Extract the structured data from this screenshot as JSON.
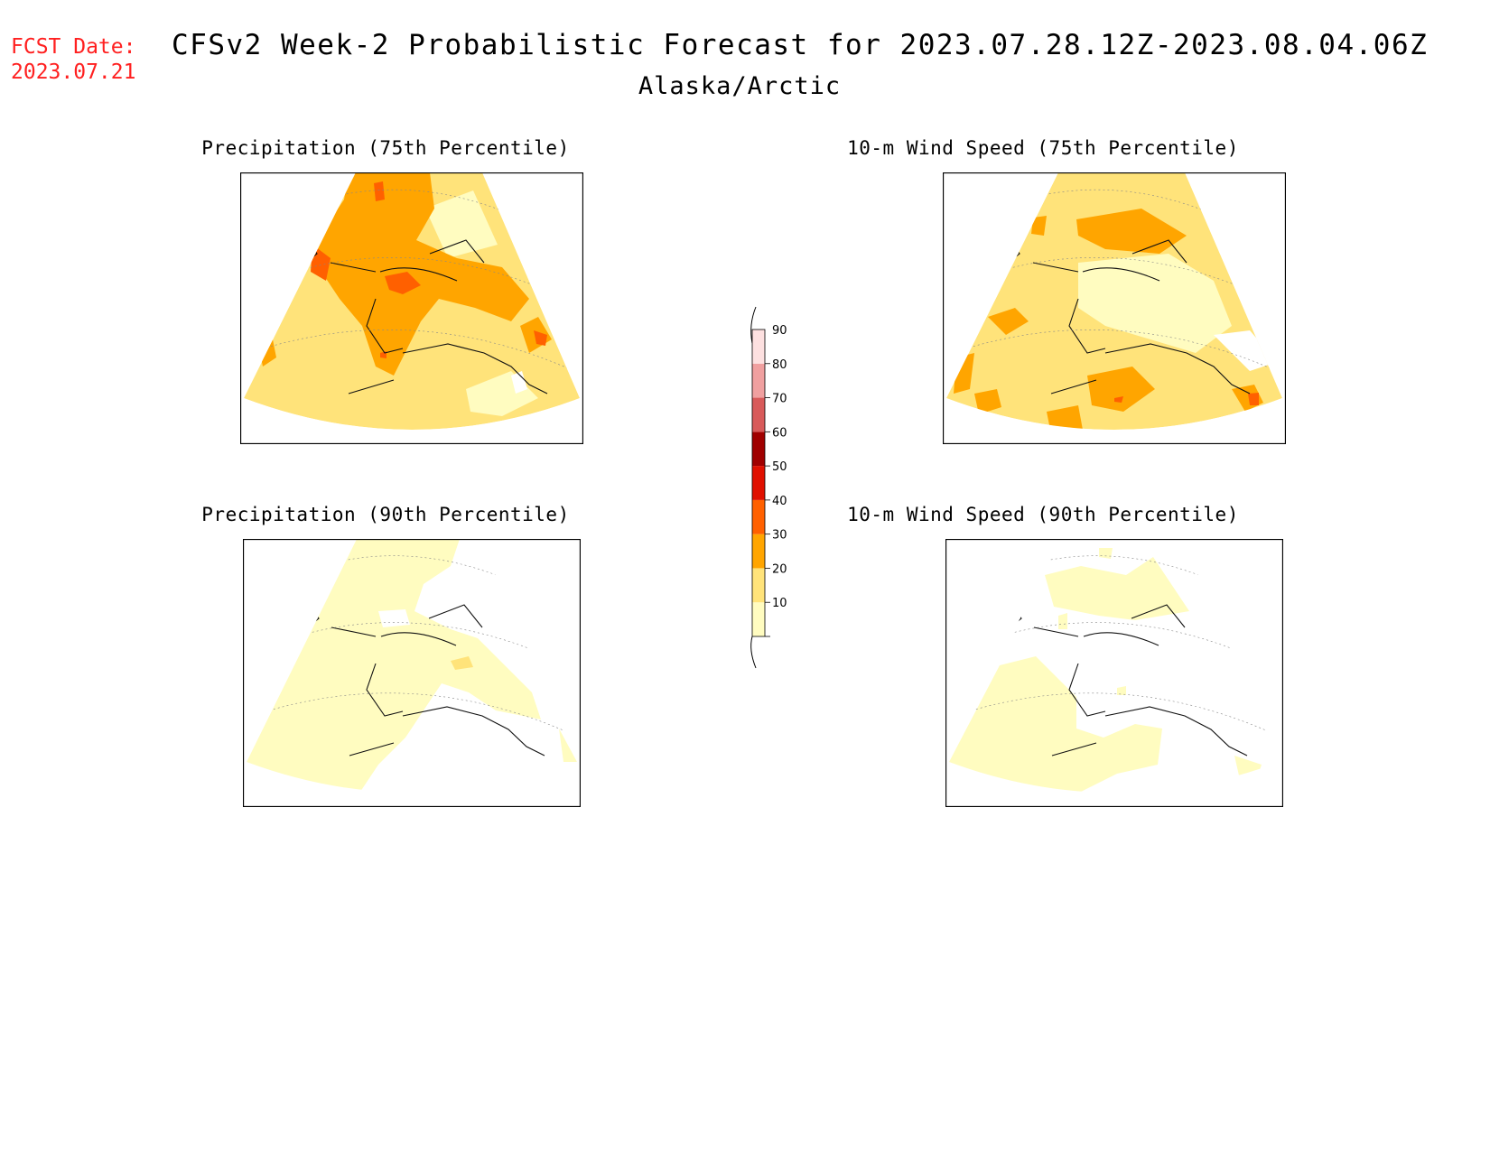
{
  "header": {
    "fcst_label": "FCST Date:",
    "fcst_date": "2023.07.21",
    "title": "CFSv2 Week-2 Probabilistic Forecast for 2023.07.28.12Z-2023.08.04.06Z",
    "region": "Alaska/Arctic"
  },
  "panels": [
    {
      "id": "precip-75",
      "title": "Precipitation (75th Percentile)"
    },
    {
      "id": "wind-75",
      "title": "10-m Wind Speed (75th Percentile)"
    },
    {
      "id": "precip-90",
      "title": "Precipitation (90th Percentile)"
    },
    {
      "id": "wind-90",
      "title": "10-m Wind Speed (90th Percentile)"
    }
  ],
  "colorbar": {
    "ticks": [
      "10",
      "20",
      "30",
      "40",
      "50",
      "60",
      "70",
      "80",
      "90"
    ],
    "colors": [
      "#fffcc0",
      "#ffe37a",
      "#ffa500",
      "#ff6000",
      "#e01000",
      "#a00000",
      "#d85a5a",
      "#f0a0a0",
      "#fde0e0"
    ]
  },
  "colors": {
    "level_10": "#fffcc0",
    "level_20": "#ffe37a",
    "level_30": "#ffa500",
    "level_40": "#ff6000",
    "fcst_date": "#ff2020"
  }
}
